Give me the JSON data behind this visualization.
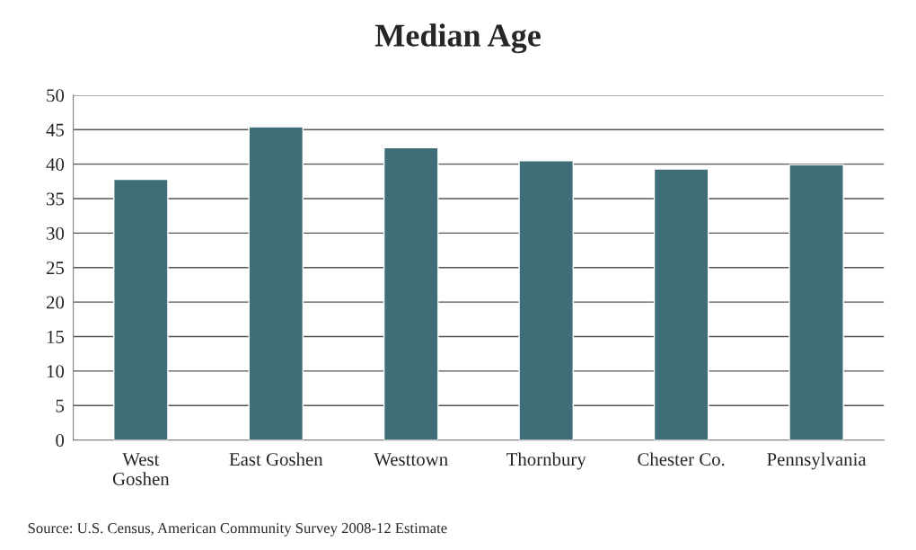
{
  "chart_data": {
    "type": "bar",
    "title": "Median Age",
    "categories": [
      "West\nGoshen",
      "East Goshen",
      "Westtown",
      "Thornbury",
      "Chester Co.",
      "Pennsylvania"
    ],
    "values": [
      37.8,
      45.4,
      42.4,
      40.5,
      39.3,
      39.9
    ],
    "color": "#3f6e78",
    "ylim": [
      0,
      50
    ],
    "yticks": [
      0,
      5,
      10,
      15,
      20,
      25,
      30,
      35,
      40,
      45,
      50
    ],
    "grid": "y",
    "annotations": [
      "Source: U.S. Census, American Community Survey 2008-12 Estimate"
    ]
  }
}
